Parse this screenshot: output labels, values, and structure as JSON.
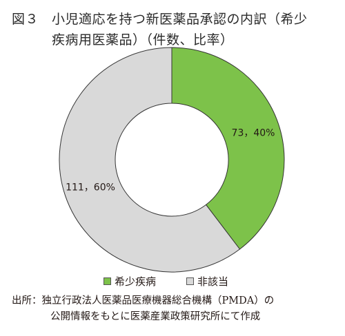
{
  "figure": {
    "label": "図３",
    "title_line1": "小児適応を持つ新医薬品承認の内訳（希少",
    "title_line2": "疾病用医薬品）（件数、比率）"
  },
  "chart_data": {
    "type": "pie",
    "donut": true,
    "start": "12 o'clock, clockwise",
    "categories": [
      "希少疾病",
      "非該当"
    ],
    "values": [
      73,
      111
    ],
    "percents": [
      40,
      60
    ],
    "data_labels": [
      "73，40%",
      "111，60%"
    ],
    "colors": [
      "#7dc24a",
      "#d9d9d9"
    ],
    "legend_position": "bottom"
  },
  "legend": {
    "items": [
      {
        "label": "希少疾病",
        "color": "#7dc24a"
      },
      {
        "label": "非該当",
        "color": "#d9d9d9"
      }
    ]
  },
  "source": {
    "line1": "出所：独立行政法人医薬品医療機器総合機構（PMDA）の",
    "line2": "公開情報をもとに医薬産業政策研究所にて作成"
  }
}
